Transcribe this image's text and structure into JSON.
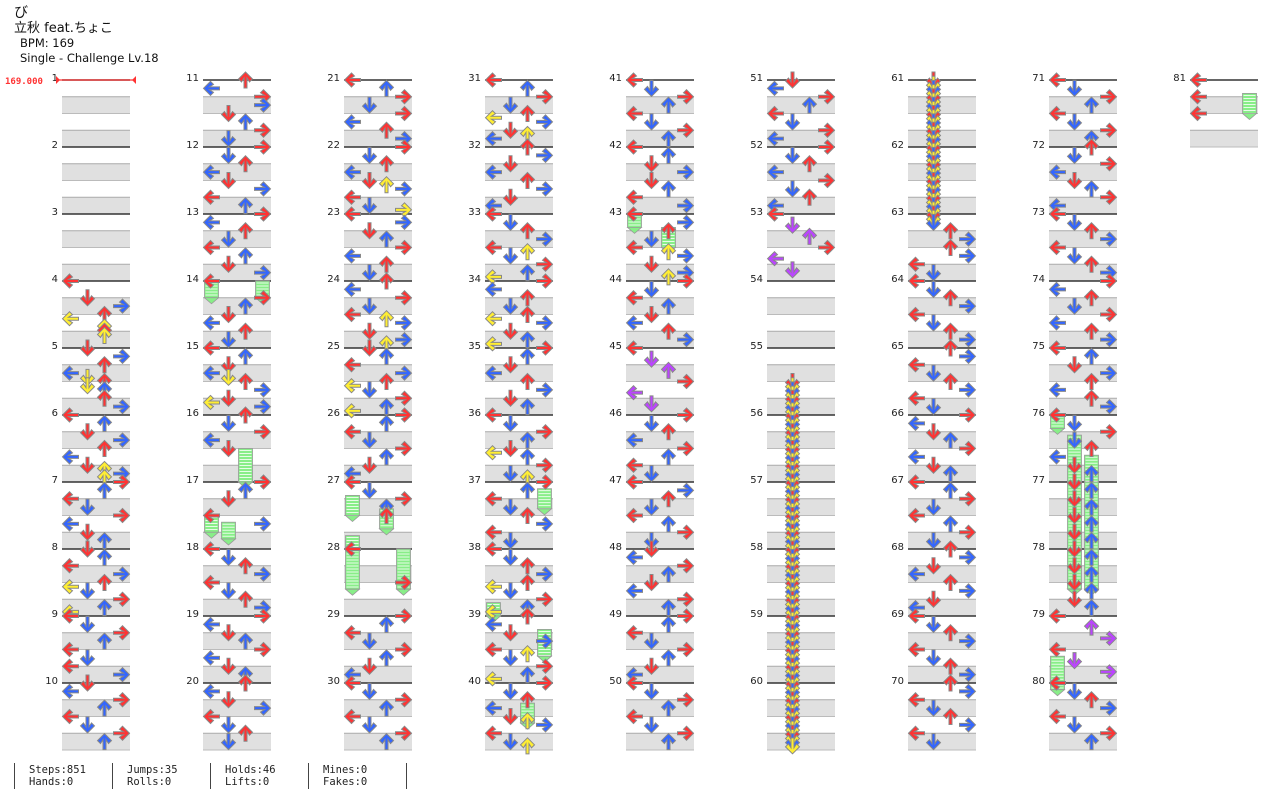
{
  "header": {
    "title": "び",
    "artist": "立秋 feat.ちょこ",
    "bpm_label": "BPM: 169",
    "difficulty": "Single - Challenge  Lv.18"
  },
  "bpm_marker": {
    "value": "169.000",
    "color": "#ff3333"
  },
  "colors": {
    "quarter": "#ff3333",
    "eighth": "#3366ff",
    "sixteenth": "#ffee33",
    "triplet": "#bb44ff",
    "hold": "#88ee88",
    "band": "#e0e0e0"
  },
  "stats": [
    {
      "top": "Steps:851",
      "bottom": "Hands:0"
    },
    {
      "top": "Jumps:35",
      "bottom": "Rolls:0"
    },
    {
      "top": "Holds:46",
      "bottom": "Lifts:0"
    },
    {
      "top": "Mines:0",
      "bottom": "Fakes:0"
    }
  ],
  "chart_data": {
    "type": "step-chart",
    "lanes": [
      "left",
      "down",
      "up",
      "right"
    ],
    "measure_count": 81,
    "measures": [
      "",
      "",
      "",
      "L...D.R.UL.UUU..",
      "D.R.U.LDUDU.U.R.",
      "L.U.D.R.U.L.DURU",
      "R.U.L.D.R.L.D.U.",
      "D.U.L.R.ULD.R.UL",
      "L.D.R.U.L.D.L.R.",
      "D.L.R.U.L.D.R.U.",
      "U.L.R.R.D.U.R.D.",
      "R.D.U.L.D.R.L.U.",
      "R.L.U.D.L.U.D.R.",
      "L...R.U.D.L.U.D.",
      "L.U.D.LDU.R.DLR.",
      "U.D.R.L.D.......",
      "R.U.D...L.R.....",
      "L.D.U.R.L.D.U.R.",
      "R.L.D.U.R.L.D.U.",
      "U.L.D.R.L.D.U.D.",
      "L.U.R.D.R.L.U.R.",
      "R.D.U.L.DUR.L.DR",
      "L.R.D.U.R.L.U.D.",
      "U.L.R.D.LUR.D.RU",
      "D.U.L.R.ULD.R.UL",
      "R.U.L.D.R.U.D.L.",
      "L.D.R.U.U.......",
      "L.......R.......",
      "R.U.L.D.R.U.D.L.",
      "L.D.R.U.L.D.R.U.",
      "L.U.R.D.ULR.DUL.",
      "U.R.D.L.U.R.D.L.",
      "L.D.U.R.LUD.R.UL",
      "R.L.U.D.ULR.D.UL",
      "R.U.D.L.U.R.D.U.",
      "L.D.R.U.DLU.R.DU",
      "R.U.L.D.U.R.L.D.",
      "L.D.U.R.ULD.R.UL",
      "U.L.D.R.LUD.R.UL",
      "R.D.U.L.DUR.L.DU",
      "L.D.R.U.L.D.R.U.",
      "L.U.D.R.D.U.L.R.",
      "L.R.U.D.LUR.D.RU",
      "R.D.L.U.D.L.U.R.",
      "L.D.U.R.L.D.",
      "R.D.U.L.R.U.L.D.",
      "L.R.U.D.L.U.R.D.",
      "D.L.R.U.D.L.R.U.",
      "R.U.L.D.R.U.D.L.",
      "L.D.R.U.L.D.R.U.",
      "D.L.R.U.L.D.R.L.",
      "R.D.U.L.R.D.U.L.",
      "L.D.U.R.L.D.",
      "",
      "........DDDDDDDD",
      "DDDDDDDDDDDDDDDD",
      "DDDDDDDDDDDDDDDD",
      "DDDDDDDDDDDDDDDD",
      "DDDDDDDDDDDDDDDD",
      "DDDDDDDDDDDDDDDD",
      "DDDDDDDDDDDDDDDD",
      "DDDDDDDDDDDDDDDD",
      "DDD.U.R.U.R.L.D.",
      "L.D.U.R.L.D.U.R.",
      "U.R.L.D.U.R.L.D.",
      "R.L.D.U.R.L.D.U.",
      "L.U.R.D.L.U.R.D.",
      "U.R.D.L.U.R.D.L.",
      "L.D.U.R.L.D.U.R.",
      "U.R.L.D.U.R.L.D.",
      "L.D.R.U.L.D.R.U.",
      "U.D.R.L.D.U.R.L.",
      "L.D.U.R.L.D.U.R.",
      "R.L.U.D.R.L.U.R.",
      "L.U.D.R.U.L.U.R.",
      "L.D.R.D.U.L.D.U.",
      "D.U.D.U.D.U.D.U.",
      "D.U.D.U.D.U.D.U.",
      "L.U.R.L.D.R.",
      "L.D.U.R.L.D.R.U.",
      "L...L...L......."
    ],
    "holds": [
      [
        14.0,
        14.25,
        "left"
      ],
      [
        14.0,
        14.25,
        "right"
      ],
      [
        16.5,
        17.0,
        "up"
      ],
      [
        17.5,
        17.75,
        "left"
      ],
      [
        17.6,
        17.85,
        "down"
      ],
      [
        27.2,
        27.5,
        "left"
      ],
      [
        27.4,
        27.7,
        "up"
      ],
      [
        27.8,
        28.6,
        "left"
      ],
      [
        28.0,
        28.6,
        "right"
      ],
      [
        37.1,
        37.4,
        "right"
      ],
      [
        38.8,
        39.0,
        "left"
      ],
      [
        39.2,
        39.6,
        "right"
      ],
      [
        40.3,
        40.6,
        "up"
      ],
      [
        43.0,
        43.2,
        "left"
      ],
      [
        43.2,
        43.5,
        "up"
      ],
      [
        76.0,
        76.2,
        "left"
      ],
      [
        76.3,
        78.6,
        "down"
      ],
      [
        76.6,
        78.6,
        "up"
      ],
      [
        79.6,
        80.1,
        "left"
      ],
      [
        81.2,
        81.5,
        "right"
      ]
    ]
  }
}
